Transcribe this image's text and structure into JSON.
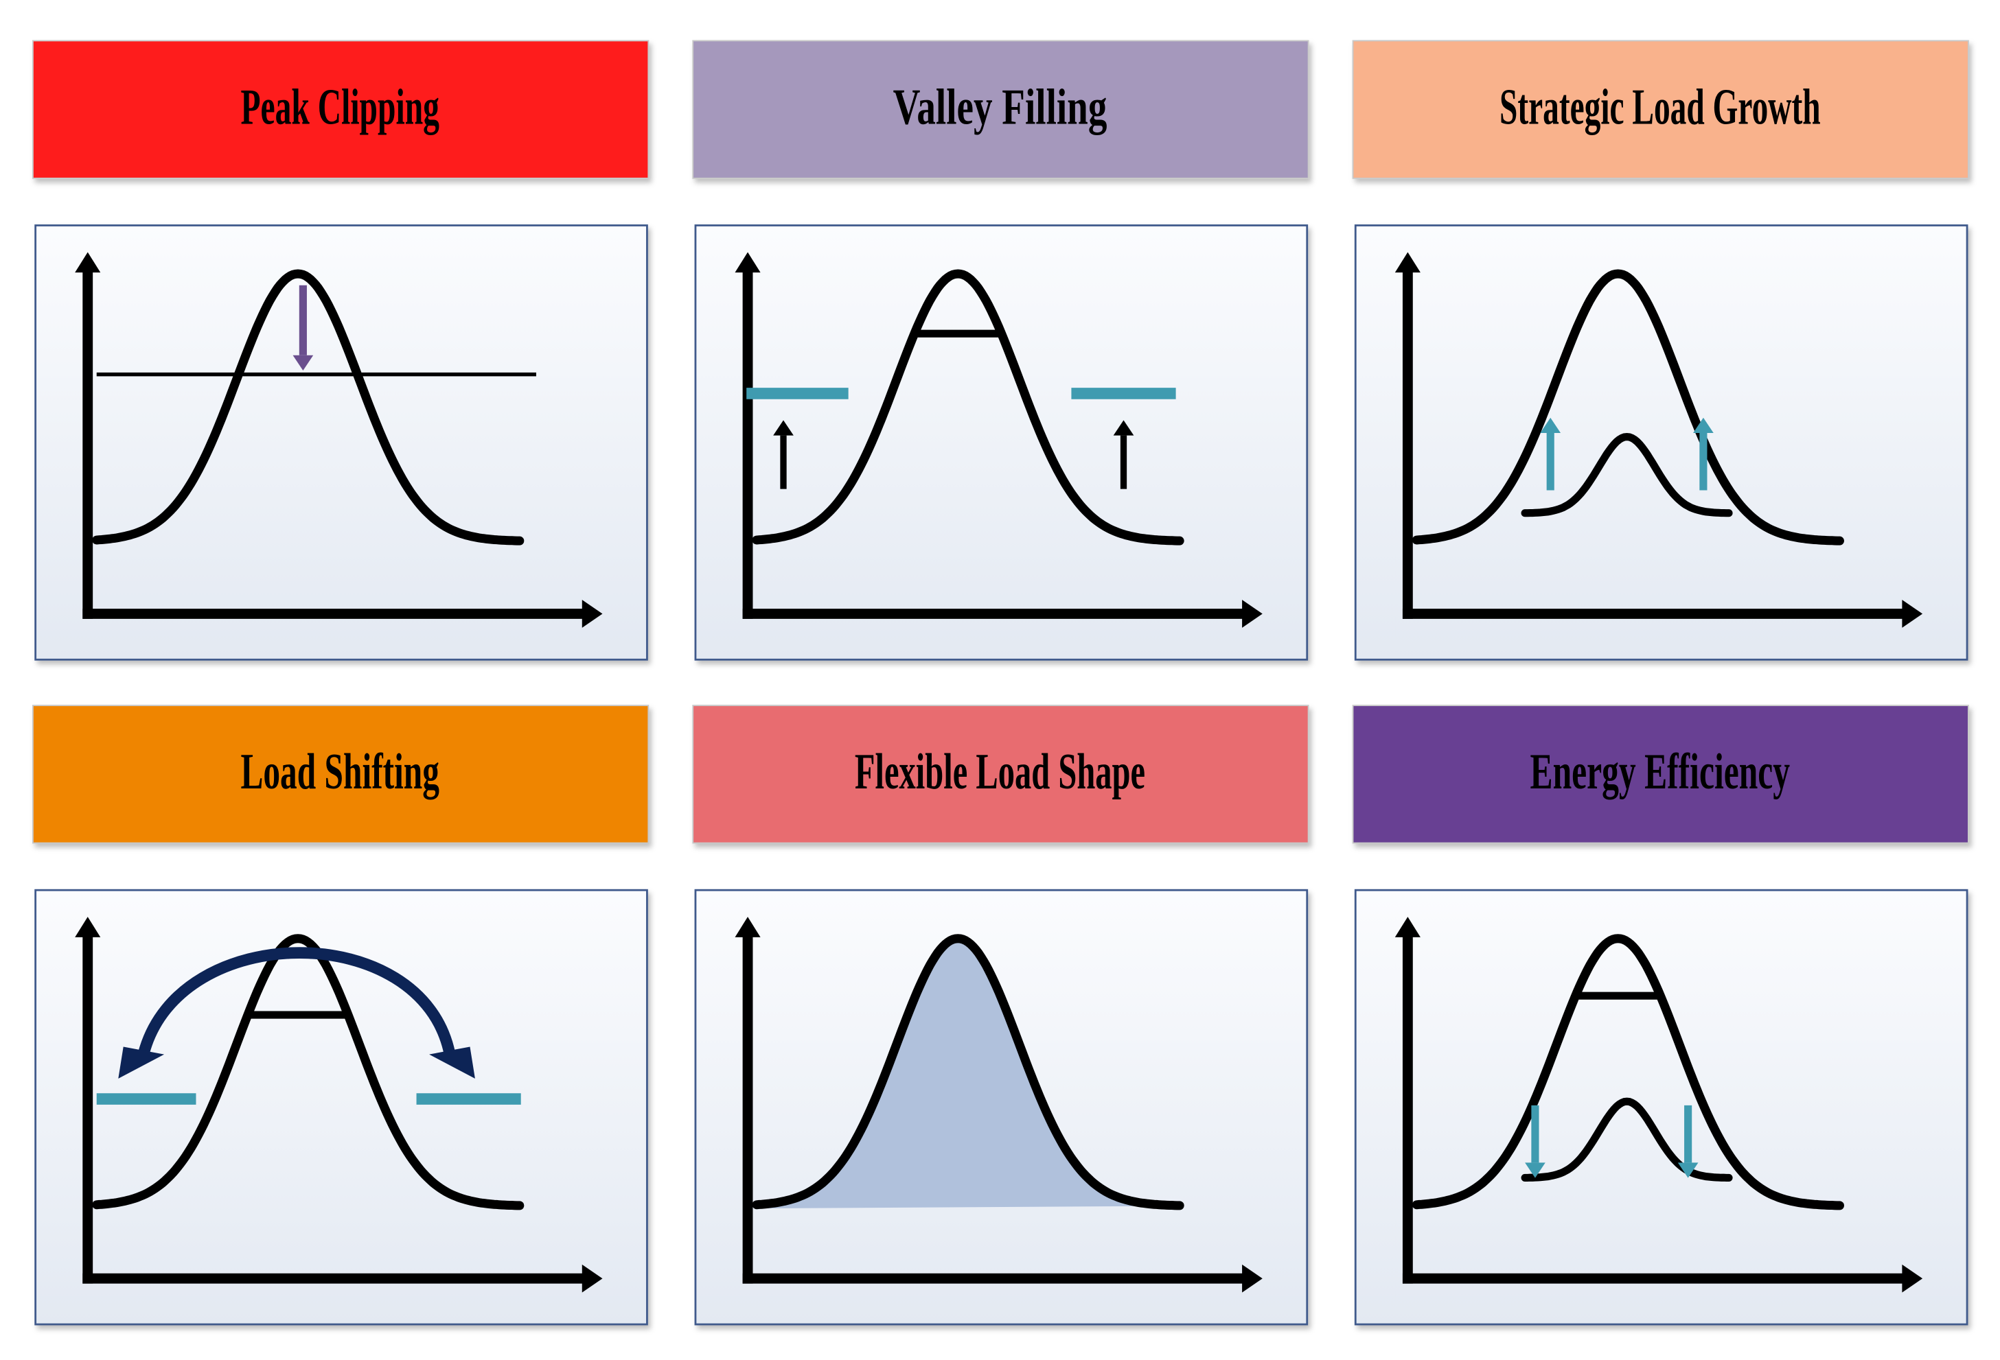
{
  "panels": [
    {
      "title": "Peak Clipping"
    },
    {
      "title": "Valley Filling"
    },
    {
      "title": "Strategic Load Growth"
    },
    {
      "title": "Load Shifting"
    },
    {
      "title": "Flexible Load Shape"
    },
    {
      "title": "Energy Efficiency"
    }
  ]
}
